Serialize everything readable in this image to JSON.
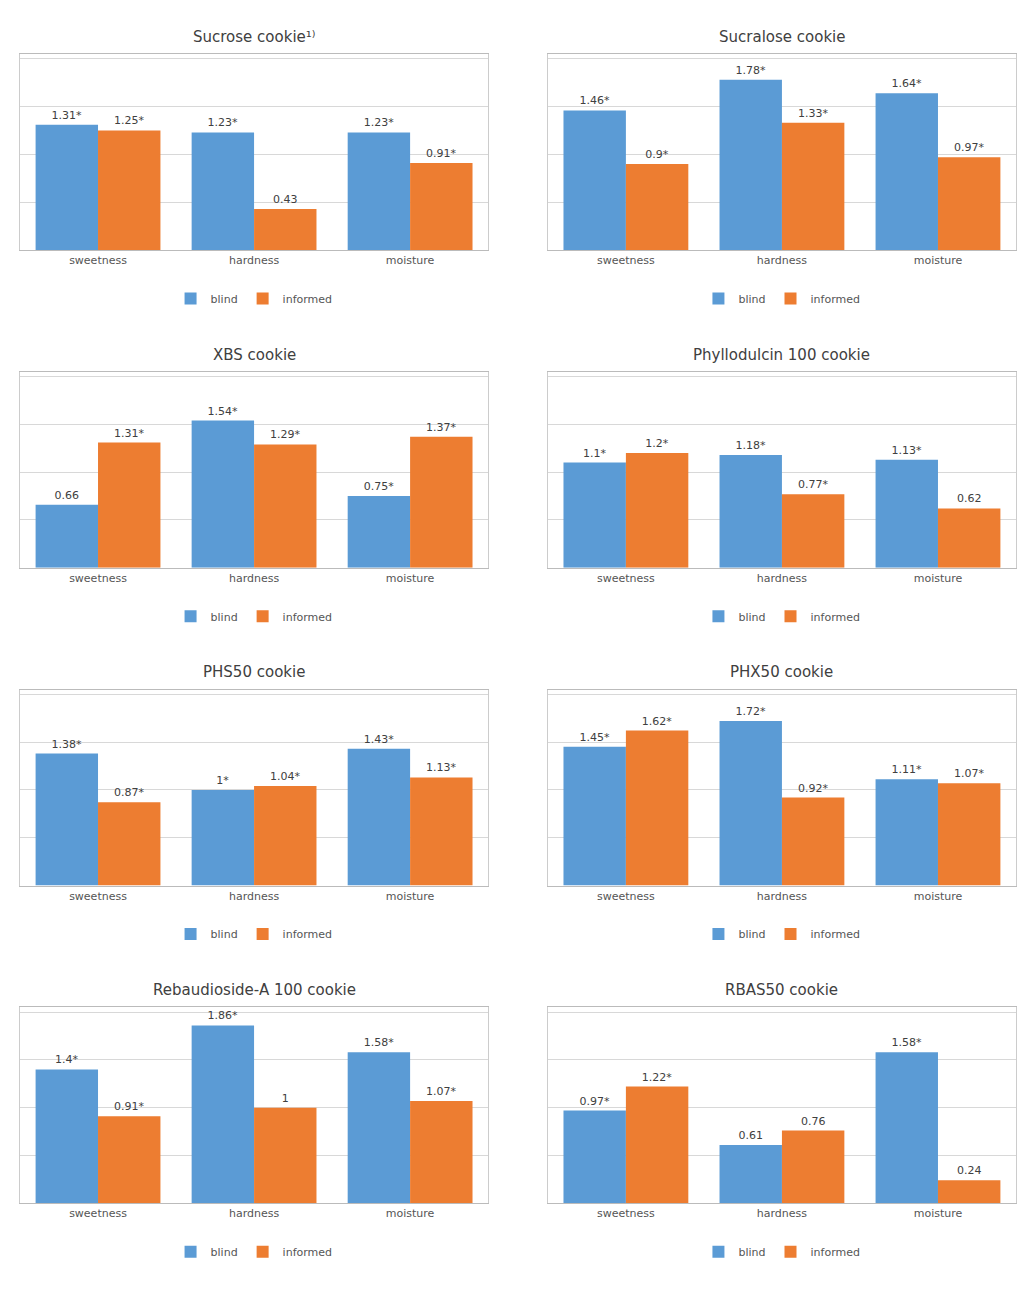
{
  "chart_data": [
    {
      "type": "bar",
      "title": "Sucrose cookie¹⁾",
      "categories": [
        "sweetness",
        "hardness",
        "moisture"
      ],
      "series": [
        {
          "name": "blind",
          "color": "#5B9BD5",
          "values": [
            1.31,
            1.23,
            1.23
          ],
          "value_labels": [
            "1.31*",
            "1.23*",
            "1.23*"
          ]
        },
        {
          "name": "informed",
          "color": "#ED7D31",
          "values": [
            1.25,
            0.43,
            0.91
          ],
          "value_labels": [
            "1.25*",
            "0.43",
            "0.91*"
          ]
        }
      ],
      "ylim": [
        0,
        2.05
      ],
      "yticks": [
        0.5,
        1,
        1.5,
        2
      ],
      "grid": true,
      "data_labels": true,
      "tick_labels": "x",
      "legend": "bottom"
    },
    {
      "type": "bar",
      "title": "Sucralose cookie",
      "categories": [
        "sweetness",
        "hardness",
        "moisture"
      ],
      "series": [
        {
          "name": "blind",
          "color": "#5B9BD5",
          "values": [
            1.46,
            1.78,
            1.64
          ],
          "value_labels": [
            "1.46*",
            "1.78*",
            "1.64*"
          ]
        },
        {
          "name": "informed",
          "color": "#ED7D31",
          "values": [
            0.9,
            1.33,
            0.97
          ],
          "value_labels": [
            "0.9*",
            "1.33*",
            "0.97*"
          ]
        }
      ],
      "ylim": [
        0,
        2.05
      ],
      "yticks": [
        0.5,
        1,
        1.5,
        2
      ],
      "grid": true,
      "data_labels": true,
      "tick_labels": "x",
      "legend": "bottom"
    },
    {
      "type": "bar",
      "title": "XBS cookie",
      "categories": [
        "sweetness",
        "hardness",
        "moisture"
      ],
      "series": [
        {
          "name": "blind",
          "color": "#5B9BD5",
          "values": [
            0.66,
            1.54,
            0.75
          ],
          "value_labels": [
            "0.66",
            "1.54*",
            "0.75*"
          ]
        },
        {
          "name": "informed",
          "color": "#ED7D31",
          "values": [
            1.31,
            1.29,
            1.37
          ],
          "value_labels": [
            "1.31*",
            "1.29*",
            "1.37*"
          ]
        }
      ],
      "ylim": [
        0,
        2.05
      ],
      "yticks": [
        0.5,
        1,
        1.5,
        2
      ],
      "grid": true,
      "data_labels": true,
      "tick_labels": "x",
      "legend": "bottom"
    },
    {
      "type": "bar",
      "title": "Phyllodulcin 100 cookie",
      "categories": [
        "sweetness",
        "hardness",
        "moisture"
      ],
      "series": [
        {
          "name": "blind",
          "color": "#5B9BD5",
          "values": [
            1.1,
            1.18,
            1.13
          ],
          "value_labels": [
            "1.1*",
            "1.18*",
            "1.13*"
          ]
        },
        {
          "name": "informed",
          "color": "#ED7D31",
          "values": [
            1.2,
            0.77,
            0.62
          ],
          "value_labels": [
            "1.2*",
            "0.77*",
            "0.62"
          ]
        }
      ],
      "ylim": [
        0,
        2.05
      ],
      "yticks": [
        0.5,
        1,
        1.5,
        2
      ],
      "grid": true,
      "data_labels": true,
      "tick_labels": "x",
      "legend": "bottom"
    },
    {
      "type": "bar",
      "title": "PHS50 cookie",
      "categories": [
        "sweetness",
        "hardness",
        "moisture"
      ],
      "series": [
        {
          "name": "blind",
          "color": "#5B9BD5",
          "values": [
            1.38,
            1.0,
            1.43
          ],
          "value_labels": [
            "1.38*",
            "1*",
            "1.43*"
          ]
        },
        {
          "name": "informed",
          "color": "#ED7D31",
          "values": [
            0.87,
            1.04,
            1.13
          ],
          "value_labels": [
            "0.87*",
            "1.04*",
            "1.13*"
          ]
        }
      ],
      "ylim": [
        0,
        2.05
      ],
      "yticks": [
        0.5,
        1,
        1.5,
        2
      ],
      "grid": true,
      "data_labels": true,
      "tick_labels": "x",
      "legend": "bottom"
    },
    {
      "type": "bar",
      "title": "PHX50 cookie",
      "categories": [
        "sweetness",
        "hardness",
        "moisture"
      ],
      "series": [
        {
          "name": "blind",
          "color": "#5B9BD5",
          "values": [
            1.45,
            1.72,
            1.11
          ],
          "value_labels": [
            "1.45*",
            "1.72*",
            "1.11*"
          ]
        },
        {
          "name": "informed",
          "color": "#ED7D31",
          "values": [
            1.62,
            0.92,
            1.07
          ],
          "value_labels": [
            "1.62*",
            "0.92*",
            "1.07*"
          ]
        }
      ],
      "ylim": [
        0,
        2.05
      ],
      "yticks": [
        0.5,
        1,
        1.5,
        2
      ],
      "grid": true,
      "data_labels": true,
      "tick_labels": "x",
      "legend": "bottom"
    },
    {
      "type": "bar",
      "title": "Rebaudioside-A 100 cookie",
      "categories": [
        "sweetness",
        "hardness",
        "moisture"
      ],
      "series": [
        {
          "name": "blind",
          "color": "#5B9BD5",
          "values": [
            1.4,
            1.86,
            1.58
          ],
          "value_labels": [
            "1.4*",
            "1.86*",
            "1.58*"
          ]
        },
        {
          "name": "informed",
          "color": "#ED7D31",
          "values": [
            0.91,
            1.0,
            1.07
          ],
          "value_labels": [
            "0.91*",
            "1",
            "1.07*"
          ]
        }
      ],
      "ylim": [
        0,
        2.05
      ],
      "yticks": [
        0.5,
        1,
        1.5,
        2
      ],
      "grid": true,
      "data_labels": true,
      "tick_labels": "x",
      "legend": "bottom"
    },
    {
      "type": "bar",
      "title": "RBAS50 cookie",
      "categories": [
        "sweetness",
        "hardness",
        "moisture"
      ],
      "series": [
        {
          "name": "blind",
          "color": "#5B9BD5",
          "values": [
            0.97,
            0.61,
            1.58
          ],
          "value_labels": [
            "0.97*",
            "0.61",
            "1.58*"
          ]
        },
        {
          "name": "informed",
          "color": "#ED7D31",
          "values": [
            1.22,
            0.76,
            0.24
          ],
          "value_labels": [
            "1.22*",
            "0.76",
            "0.24"
          ]
        }
      ],
      "ylim": [
        0,
        2.05
      ],
      "yticks": [
        0.5,
        1,
        1.5,
        2
      ],
      "grid": true,
      "data_labels": true,
      "tick_labels": "x",
      "legend": "bottom"
    }
  ]
}
